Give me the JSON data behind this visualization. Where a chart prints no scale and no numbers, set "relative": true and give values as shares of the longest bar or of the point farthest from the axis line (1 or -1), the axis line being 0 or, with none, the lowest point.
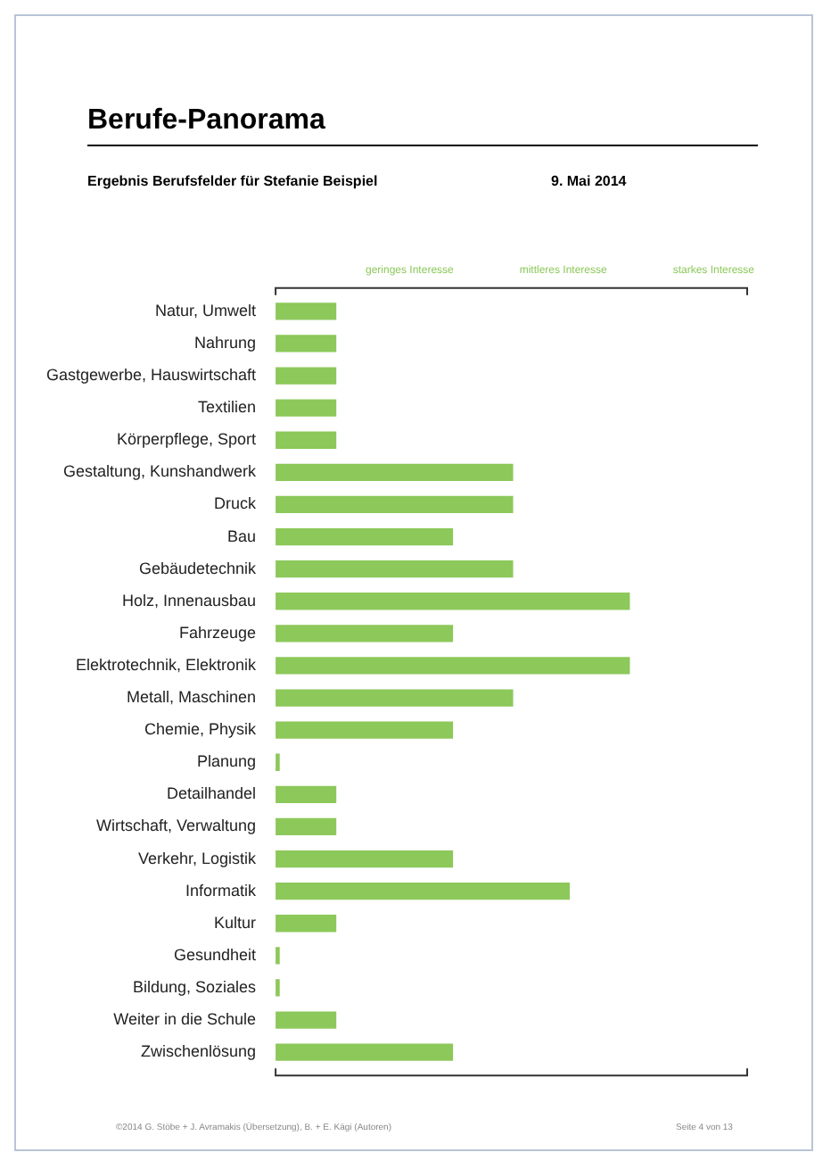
{
  "chart_data": {
    "type": "bar",
    "orientation": "horizontal",
    "relative": true,
    "title": "Berufe-Panorama",
    "subtitle": "Ergebnis Berufsfelder für Stefanie Beispiel",
    "categories": [
      "Natur, Umwelt",
      "Nahrung",
      "Gastgewerbe, Hauswirtschaft",
      "Textilien",
      "Körperpflege, Sport",
      "Gestaltung, Kunshandwerk",
      "Druck",
      "Bau",
      "Gebäudetechnik",
      "Holz, Innenausbau",
      "Fahrzeuge",
      "Elektrotechnik, Elektronik",
      "Metall, Maschinen",
      "Chemie, Physik",
      "Planung",
      "Detailhandel",
      "Wirtschaft, Verwaltung",
      "Verkehr, Logistik",
      "Informatik",
      "Kultur",
      "Gesundheit",
      "Bildung, Soziales",
      "Weiter in die Schule",
      "Zwischenlösung"
    ],
    "values": [
      0.17,
      0.17,
      0.17,
      0.17,
      0.17,
      0.67,
      0.67,
      0.5,
      0.67,
      1,
      0.5,
      1,
      0.67,
      0.5,
      0.01,
      0.17,
      0.17,
      0.5,
      0.83,
      0.17,
      0.01,
      0.01,
      0.17,
      0.5
    ],
    "color": "#8cc85a",
    "annotations": [
      "geringes Interesse",
      "mittleres Interesse",
      "starkes Interesse",
      "9. Mai 2014",
      "©2014 G. Stöbe + J. Avramakis (Übersetzung), B. + E. Kägi (Autoren)",
      "Seite 4 von 13"
    ],
    "legend": false,
    "grid": false
  }
}
